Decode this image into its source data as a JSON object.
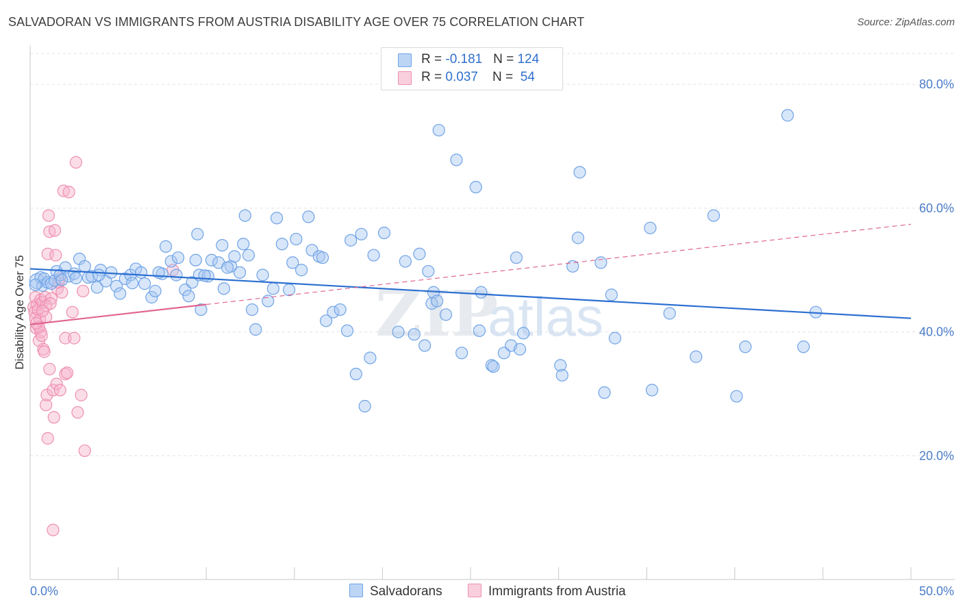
{
  "title": "SALVADORAN VS IMMIGRANTS FROM AUSTRIA DISABILITY AGE OVER 75 CORRELATION CHART",
  "source": "Source: ZipAtlas.com",
  "colors": {
    "blue": "#6fa3e6",
    "blue_fill": "#a9c8f2",
    "blue_line": "#2b6fd1",
    "pink": "#ee8fb0",
    "pink_fill": "#f6c2d4",
    "pink_line": "#e06590",
    "axis_text": "#4a7cc9",
    "grid": "#e3e3e3"
  },
  "legend": {
    "rows": [
      {
        "r_label": "R = ",
        "r_value": "-0.181",
        "n_label": "N = ",
        "n_value": "124"
      },
      {
        "r_label": "R = ",
        "r_value": "0.037",
        "n_label": "N = ",
        "n_value": " 54"
      }
    ]
  },
  "bottom_legend": [
    "Salvadorans",
    "Immigrants from Austria"
  ],
  "watermark": {
    "zip": "ZIP",
    "atlas": "atlas"
  },
  "chart_data": {
    "type": "scatter",
    "title": "SALVADORAN VS IMMIGRANTS FROM AUSTRIA DISABILITY AGE OVER 75 CORRELATION CHART",
    "xlabel": "",
    "ylabel": "Disability Age Over 75",
    "xlim": [
      0,
      50
    ],
    "ylim": [
      0,
      85
    ],
    "x_tick_labels": [
      "0.0%",
      "50.0%"
    ],
    "y_ticks": [
      20,
      40,
      60,
      80
    ],
    "y_tick_labels": [
      "20.0%",
      "40.0%",
      "60.0%",
      "80.0%"
    ],
    "grid": true,
    "legend_position": "top-center",
    "series": [
      {
        "name": "Salvadorans",
        "color": "#6fa3e6",
        "trend": {
          "x": [
            0,
            50
          ],
          "y": [
            50.2,
            42.2
          ]
        },
        "points": [
          [
            0.4,
            48.2
          ],
          [
            0.6,
            48.8
          ],
          [
            0.7,
            47.5
          ],
          [
            0.8,
            48.6
          ],
          [
            1.0,
            48.0
          ],
          [
            1.2,
            47.8
          ],
          [
            1.4,
            48.3
          ],
          [
            1.5,
            49.8
          ],
          [
            1.7,
            49.2
          ],
          [
            2.0,
            50.4
          ],
          [
            2.2,
            49.0
          ],
          [
            2.5,
            49.4
          ],
          [
            2.8,
            51.8
          ],
          [
            3.1,
            50.6
          ],
          [
            3.3,
            48.8
          ],
          [
            3.5,
            49.0
          ],
          [
            3.8,
            47.2
          ],
          [
            4.0,
            50.0
          ],
          [
            4.3,
            48.2
          ],
          [
            4.6,
            49.6
          ],
          [
            4.9,
            47.4
          ],
          [
            5.1,
            46.2
          ],
          [
            5.4,
            48.6
          ],
          [
            5.7,
            49.2
          ],
          [
            6.0,
            50.2
          ],
          [
            6.3,
            49.6
          ],
          [
            6.5,
            47.8
          ],
          [
            6.9,
            45.6
          ],
          [
            7.1,
            46.6
          ],
          [
            7.5,
            49.4
          ],
          [
            7.7,
            53.8
          ],
          [
            8.0,
            51.4
          ],
          [
            8.3,
            49.2
          ],
          [
            8.4,
            52.0
          ],
          [
            8.8,
            46.8
          ],
          [
            9.0,
            45.8
          ],
          [
            9.2,
            48.0
          ],
          [
            9.4,
            51.6
          ],
          [
            9.6,
            49.2
          ],
          [
            9.5,
            55.8
          ],
          [
            9.7,
            43.6
          ],
          [
            10.1,
            49.0
          ],
          [
            10.3,
            51.6
          ],
          [
            10.7,
            51.2
          ],
          [
            10.9,
            54.0
          ],
          [
            11.0,
            47.0
          ],
          [
            11.4,
            50.6
          ],
          [
            11.6,
            52.2
          ],
          [
            12.1,
            54.2
          ],
          [
            12.4,
            52.4
          ],
          [
            11.9,
            49.6
          ],
          [
            12.2,
            58.8
          ],
          [
            12.6,
            43.6
          ],
          [
            12.8,
            40.4
          ],
          [
            13.2,
            49.2
          ],
          [
            13.5,
            45.0
          ],
          [
            13.8,
            47.0
          ],
          [
            14.0,
            58.4
          ],
          [
            14.3,
            54.2
          ],
          [
            14.7,
            46.8
          ],
          [
            14.9,
            51.2
          ],
          [
            15.1,
            55.0
          ],
          [
            15.4,
            50.0
          ],
          [
            15.8,
            58.6
          ],
          [
            16.0,
            53.2
          ],
          [
            16.4,
            52.2
          ],
          [
            16.6,
            52.0
          ],
          [
            16.8,
            41.8
          ],
          [
            17.2,
            43.2
          ],
          [
            17.6,
            43.6
          ],
          [
            18.0,
            40.2
          ],
          [
            18.2,
            54.8
          ],
          [
            18.5,
            33.2
          ],
          [
            18.8,
            55.8
          ],
          [
            19.0,
            28.0
          ],
          [
            19.3,
            35.8
          ],
          [
            19.5,
            52.4
          ],
          [
            20.1,
            56.0
          ],
          [
            20.9,
            40.0
          ],
          [
            21.3,
            51.4
          ],
          [
            21.8,
            39.6
          ],
          [
            22.1,
            52.6
          ],
          [
            22.4,
            37.8
          ],
          [
            22.6,
            49.8
          ],
          [
            22.9,
            46.4
          ],
          [
            22.8,
            44.6
          ],
          [
            23.2,
            72.6
          ],
          [
            23.1,
            45.0
          ],
          [
            23.6,
            42.8
          ],
          [
            24.2,
            67.8
          ],
          [
            24.5,
            36.6
          ],
          [
            25.3,
            63.4
          ],
          [
            25.5,
            40.2
          ],
          [
            25.6,
            46.4
          ],
          [
            26.2,
            34.6
          ],
          [
            26.3,
            34.4
          ],
          [
            26.9,
            36.6
          ],
          [
            27.3,
            37.8
          ],
          [
            27.6,
            52.0
          ],
          [
            27.8,
            37.2
          ],
          [
            28.0,
            39.8
          ],
          [
            30.1,
            34.6
          ],
          [
            30.2,
            33.0
          ],
          [
            30.8,
            50.6
          ],
          [
            31.1,
            55.2
          ],
          [
            31.2,
            65.8
          ],
          [
            32.4,
            51.2
          ],
          [
            32.6,
            30.2
          ],
          [
            33.0,
            46.0
          ],
          [
            33.2,
            39.0
          ],
          [
            35.2,
            56.8
          ],
          [
            35.3,
            30.6
          ],
          [
            36.3,
            43.0
          ],
          [
            37.8,
            36.0
          ],
          [
            38.8,
            58.8
          ],
          [
            40.1,
            29.6
          ],
          [
            40.6,
            37.6
          ],
          [
            43.9,
            37.6
          ],
          [
            44.6,
            43.2
          ],
          [
            43.0,
            75.0
          ],
          [
            0.3,
            47.6
          ],
          [
            1.8,
            48.4
          ],
          [
            2.6,
            48.7
          ],
          [
            3.9,
            49.2
          ],
          [
            5.8,
            47.9
          ],
          [
            7.3,
            49.6
          ],
          [
            9.9,
            49.1
          ],
          [
            11.2,
            50.4
          ]
        ]
      },
      {
        "name": "Immigrants from Austria",
        "color": "#ee8fb0",
        "trend": {
          "x": [
            0,
            50
          ],
          "y": [
            41.2,
            57.4
          ]
        },
        "points": [
          [
            0.2,
            44.0
          ],
          [
            0.25,
            43.2
          ],
          [
            0.3,
            45.6
          ],
          [
            0.3,
            42.2
          ],
          [
            0.35,
            40.6
          ],
          [
            0.4,
            44.4
          ],
          [
            0.45,
            43.6
          ],
          [
            0.5,
            38.6
          ],
          [
            0.55,
            42.0
          ],
          [
            0.6,
            40.0
          ],
          [
            0.6,
            45.2
          ],
          [
            0.65,
            39.4
          ],
          [
            0.7,
            44.8
          ],
          [
            0.75,
            37.2
          ],
          [
            0.8,
            36.8
          ],
          [
            0.85,
            45.6
          ],
          [
            0.9,
            42.4
          ],
          [
            0.9,
            28.2
          ],
          [
            0.95,
            29.8
          ],
          [
            1.0,
            22.8
          ],
          [
            1.0,
            52.6
          ],
          [
            1.05,
            58.8
          ],
          [
            1.1,
            56.2
          ],
          [
            1.1,
            34.0
          ],
          [
            1.2,
            45.4
          ],
          [
            1.3,
            30.6
          ],
          [
            1.35,
            26.2
          ],
          [
            1.4,
            56.4
          ],
          [
            1.45,
            52.4
          ],
          [
            1.5,
            31.6
          ],
          [
            1.55,
            47.0
          ],
          [
            1.6,
            48.0
          ],
          [
            1.7,
            30.6
          ],
          [
            1.7,
            48.6
          ],
          [
            1.8,
            46.4
          ],
          [
            1.9,
            62.8
          ],
          [
            2.0,
            33.2
          ],
          [
            2.0,
            39.0
          ],
          [
            2.1,
            33.4
          ],
          [
            2.2,
            62.6
          ],
          [
            2.4,
            43.2
          ],
          [
            2.5,
            39.0
          ],
          [
            2.6,
            67.4
          ],
          [
            2.7,
            27.0
          ],
          [
            2.9,
            29.8
          ],
          [
            3.0,
            46.6
          ],
          [
            3.1,
            20.8
          ],
          [
            0.9,
            44.2
          ],
          [
            1.3,
            8.0
          ],
          [
            8.1,
            50.0
          ],
          [
            0.5,
            40.8
          ],
          [
            0.7,
            43.4
          ],
          [
            0.35,
            41.4
          ],
          [
            1.15,
            44.6
          ]
        ]
      }
    ]
  }
}
